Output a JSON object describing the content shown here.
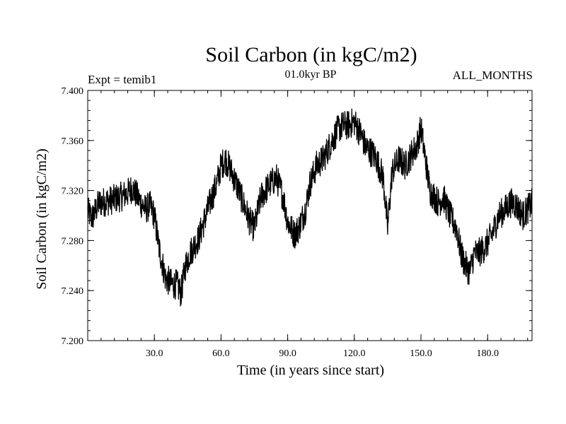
{
  "chart_data": {
    "type": "line",
    "title": "Soil Carbon (in kgC/m2)",
    "subtitle": "01.0kyr BP",
    "left_label": "Expt = temib1",
    "right_label": "ALL_MONTHS",
    "xlabel": "Time (in years since start)",
    "ylabel": "Soil Carbon (in kgC/m2)",
    "xlim": [
      0,
      200
    ],
    "ylim": [
      7.2,
      7.4
    ],
    "x_ticks": [
      30,
      60,
      90,
      120,
      150,
      180
    ],
    "x_tick_labels": [
      "30.0",
      "60.0",
      "90.0",
      "120.0",
      "150.0",
      "180.0"
    ],
    "y_ticks": [
      7.2,
      7.24,
      7.28,
      7.32,
      7.36,
      7.4
    ],
    "y_tick_labels": [
      "7.200",
      "7.240",
      "7.280",
      "7.320",
      "7.360",
      "7.400"
    ],
    "x_minor_step": 6,
    "y_minor_step": 0.008,
    "line_color": "#000000",
    "series": [
      {
        "name": "Soil Carbon",
        "noise_amplitude": 0.012,
        "x": [
          0,
          2,
          5,
          10,
          15,
          18,
          20,
          24,
          26,
          28,
          30,
          32,
          35,
          38,
          40,
          42,
          44,
          46,
          50,
          55,
          58,
          60,
          62,
          64,
          67,
          70,
          73,
          75,
          78,
          82,
          85,
          88,
          90,
          93,
          95,
          98,
          100,
          103,
          106,
          110,
          113,
          115,
          117,
          120,
          123,
          125,
          128,
          130,
          133,
          135,
          137,
          140,
          143,
          146,
          148,
          150,
          152,
          154,
          156,
          158,
          160,
          163,
          166,
          168,
          170,
          172,
          174,
          176,
          179,
          182,
          185,
          188,
          190,
          192,
          194,
          196,
          198,
          200
        ],
        "values": [
          7.303,
          7.298,
          7.31,
          7.312,
          7.315,
          7.318,
          7.322,
          7.31,
          7.305,
          7.308,
          7.3,
          7.275,
          7.25,
          7.245,
          7.245,
          7.238,
          7.26,
          7.27,
          7.282,
          7.31,
          7.325,
          7.34,
          7.345,
          7.338,
          7.325,
          7.31,
          7.295,
          7.29,
          7.315,
          7.325,
          7.33,
          7.315,
          7.295,
          7.285,
          7.29,
          7.305,
          7.325,
          7.34,
          7.345,
          7.36,
          7.37,
          7.372,
          7.372,
          7.375,
          7.365,
          7.355,
          7.35,
          7.345,
          7.33,
          7.29,
          7.335,
          7.345,
          7.34,
          7.35,
          7.355,
          7.37,
          7.345,
          7.32,
          7.315,
          7.31,
          7.315,
          7.3,
          7.29,
          7.27,
          7.26,
          7.255,
          7.27,
          7.27,
          7.275,
          7.285,
          7.3,
          7.305,
          7.31,
          7.31,
          7.305,
          7.3,
          7.305,
          7.31
        ]
      }
    ]
  }
}
